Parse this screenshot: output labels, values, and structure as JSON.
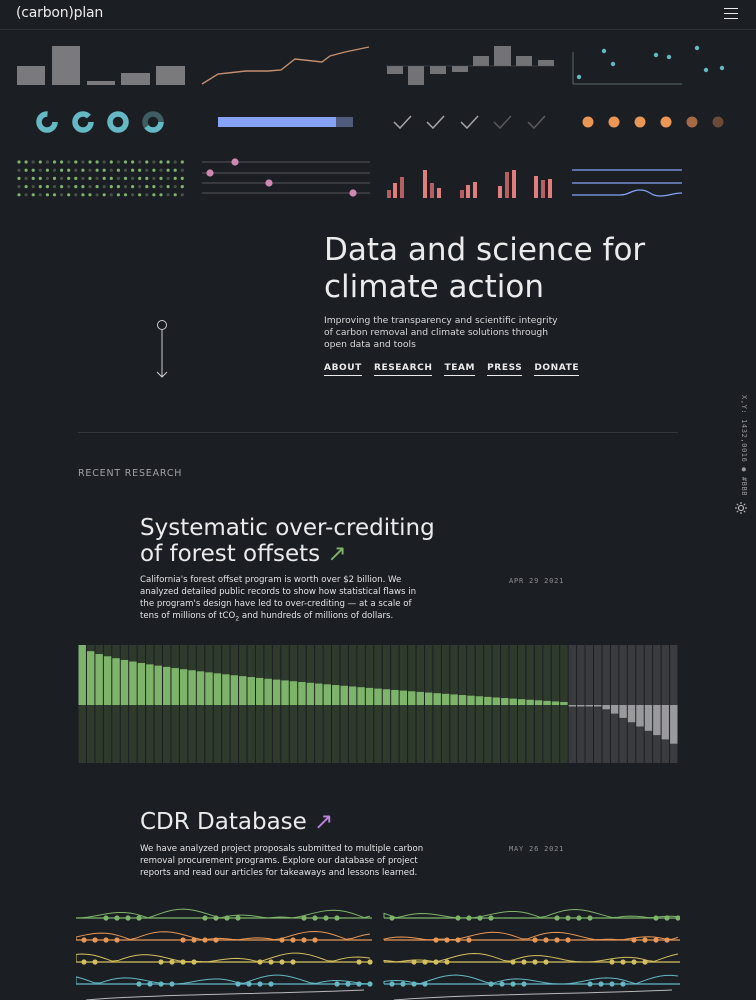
{
  "header": {
    "logo": "(carbon)plan",
    "menu_icon": "hamburger-icon"
  },
  "hero": {
    "title": "Data and science for climate action",
    "subtitle": "Improving the transparency and scientific integrity of carbon removal and climate solutions through open data and tools",
    "nav": [
      "ABOUT",
      "RESEARCH",
      "TEAM",
      "PRESS",
      "DONATE"
    ]
  },
  "sidebar": {
    "coords": "X,Y: 1432,0016 ● #BBBB00",
    "theme_icon": "sun-icon"
  },
  "recent": {
    "heading": "RECENT RESEARCH",
    "articles": [
      {
        "title_line1": "Systematic over-crediting",
        "title_line2": "of forest offsets",
        "arrow": "↗",
        "arrow_color": "#7eb36a",
        "description_1": "California's forest offset program is worth over $2 billion. We analyzed detailed public records to show how statistical flaws in the program's design have led to over-crediting — at a scale of tens of millions of tCO",
        "description_sub": "2",
        "description_2": " and hundreds of millions of dollars.",
        "date": "APR 29 2021"
      },
      {
        "title_line1": "CDR Database",
        "arrow": "↗",
        "arrow_color": "#bc85d9",
        "description": "We have analyzed project proposals submitted to multiple carbon removal procurement programs. Explore our database of project reports and read our articles for takeaways and lessons learned.",
        "date": "MAY 26 2021"
      }
    ]
  },
  "colors": {
    "background": "#1b1e23",
    "green": "#7eb36a",
    "grey": "#808080",
    "orange": "#ea9755",
    "yellow": "#d4c05e",
    "teal": "#64b9c4",
    "blue": "#85a2f7",
    "pink": "#e07e7e",
    "purple": "#bc85d9",
    "mauve": "#d088b3"
  }
}
